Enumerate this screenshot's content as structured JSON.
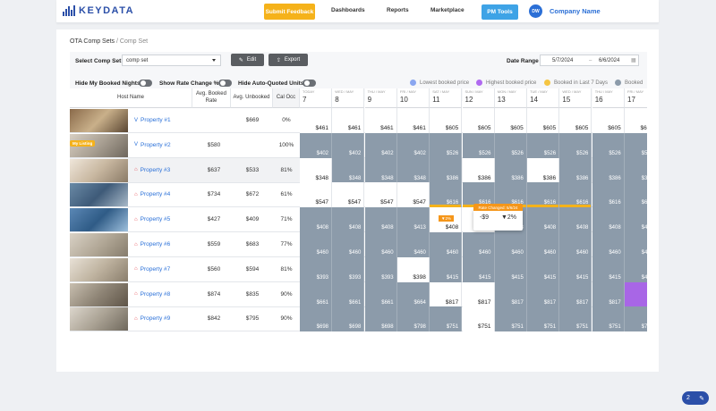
{
  "nav": {
    "brand": "KEYDATA",
    "submit_feedback": "Submit Feedback",
    "links": [
      "Dashboards",
      "Reports",
      "Marketplace"
    ],
    "active": "PM Tools",
    "avatar": "DW",
    "company": "Company Name"
  },
  "breadcrumb": {
    "root": "OTA Comp Sets",
    "sep": " / ",
    "current": "Comp Set"
  },
  "controls": {
    "select_label": "Select Comp Set:",
    "select_value": "comp set",
    "edit": "Edit",
    "export": "Export",
    "date_label": "Date Range",
    "date_start": "5/7/2024",
    "date_sep": "–",
    "date_end": "6/6/2024",
    "toggles": [
      "Hide My Booked Nights",
      "Show Rate Change %",
      "Hide Auto-Quoted Units"
    ]
  },
  "legend": [
    {
      "label": "Lowest booked price",
      "color": "#8aa6f0"
    },
    {
      "label": "Highest booked price",
      "color": "#b06af0"
    },
    {
      "label": "Booked in Last 7 Days",
      "color": "#f5c542"
    },
    {
      "label": "Booked",
      "color": "#8c9baa"
    }
  ],
  "table": {
    "headers": {
      "host": "Host Name",
      "avg_booked": "Avg. Booked Rate",
      "avg_unbooked": "Avg. Unbooked",
      "cal_occ": "Cal Occ"
    },
    "dates": [
      {
        "dow": "TODAY",
        "num": "7"
      },
      {
        "dow": "WED / MAY",
        "num": "8"
      },
      {
        "dow": "THU / MAY",
        "num": "9"
      },
      {
        "dow": "FRI / MAY",
        "num": "10"
      },
      {
        "dow": "SAT / MAY",
        "num": "11"
      },
      {
        "dow": "SUN / MAY",
        "num": "12"
      },
      {
        "dow": "MON / MAY",
        "num": "13"
      },
      {
        "dow": "TUE / MAY",
        "num": "14"
      },
      {
        "dow": "WED / MAY",
        "num": "15"
      },
      {
        "dow": "THU / MAY",
        "num": "16"
      },
      {
        "dow": "FRI / MAY",
        "num": "17"
      }
    ],
    "rows": [
      {
        "name": "Property #1",
        "src": "vrbo",
        "booked": "",
        "unbooked": "$669",
        "occ": "0%",
        "my": false,
        "cells": [
          [
            "open",
            "$461"
          ],
          [
            "open",
            "$461"
          ],
          [
            "open",
            "$461"
          ],
          [
            "open",
            "$461"
          ],
          [
            "open",
            "$605"
          ],
          [
            "open",
            "$605"
          ],
          [
            "open",
            "$605"
          ],
          [
            "open",
            "$605"
          ],
          [
            "open",
            "$605"
          ],
          [
            "open",
            "$605"
          ],
          [
            "open",
            "$605"
          ]
        ]
      },
      {
        "name": "Property #2",
        "src": "vrbo",
        "booked": "$580",
        "unbooked": "",
        "occ": "100%",
        "my": true,
        "my_label": "My Listing",
        "cells": [
          [
            "b",
            "$402"
          ],
          [
            "b",
            "$402"
          ],
          [
            "b",
            "$402"
          ],
          [
            "b",
            "$402"
          ],
          [
            "b",
            "$526"
          ],
          [
            "b",
            "$526"
          ],
          [
            "b",
            "$526"
          ],
          [
            "b",
            "$526"
          ],
          [
            "b",
            "$526"
          ],
          [
            "b",
            "$526"
          ],
          [
            "b",
            "$526"
          ]
        ]
      },
      {
        "name": "Property #3",
        "src": "air",
        "booked": "$637",
        "unbooked": "$533",
        "occ": "81%",
        "my": false,
        "cells": [
          [
            "open",
            "$348"
          ],
          [
            "b",
            "$348"
          ],
          [
            "b",
            "$348"
          ],
          [
            "b",
            "$348"
          ],
          [
            "b",
            "$386"
          ],
          [
            "open",
            "$386"
          ],
          [
            "b",
            "$386"
          ],
          [
            "open",
            "$386"
          ],
          [
            "b",
            "$386"
          ],
          [
            "b",
            "$386"
          ],
          [
            "b",
            "$386"
          ]
        ]
      },
      {
        "name": "Property #4",
        "src": "air",
        "booked": "$734",
        "unbooked": "$672",
        "occ": "61%",
        "my": false,
        "cells": [
          [
            "open",
            "$547"
          ],
          [
            "open",
            "$547"
          ],
          [
            "open",
            "$547"
          ],
          [
            "open",
            "$547"
          ],
          [
            "r",
            "$616"
          ],
          [
            "r",
            "$616"
          ],
          [
            "r",
            "$616"
          ],
          [
            "r",
            "$616"
          ],
          [
            "r",
            "$616"
          ],
          [
            "b",
            "$616"
          ],
          [
            "b",
            "$616"
          ]
        ]
      },
      {
        "name": "Property #5",
        "src": "air",
        "booked": "$427",
        "unbooked": "$409",
        "occ": "71%",
        "my": false,
        "cells": [
          [
            "b",
            "$408"
          ],
          [
            "b",
            "$408"
          ],
          [
            "b",
            "$408"
          ],
          [
            "b",
            "$413"
          ],
          [
            "open",
            "$408"
          ],
          [
            "open",
            "$408"
          ],
          [
            "b",
            "$408"
          ],
          [
            "b",
            "$408"
          ],
          [
            "b",
            "$408"
          ],
          [
            "b",
            "$408"
          ],
          [
            "b",
            "$408"
          ]
        ]
      },
      {
        "name": "Property #6",
        "src": "air",
        "booked": "$559",
        "unbooked": "$683",
        "occ": "77%",
        "my": false,
        "cells": [
          [
            "b",
            "$460"
          ],
          [
            "b",
            "$460"
          ],
          [
            "b",
            "$460"
          ],
          [
            "b",
            "$460"
          ],
          [
            "b",
            "$460"
          ],
          [
            "b",
            "$460"
          ],
          [
            "b",
            "$460"
          ],
          [
            "b",
            "$460"
          ],
          [
            "b",
            "$460"
          ],
          [
            "b",
            "$460"
          ],
          [
            "b",
            "$460"
          ]
        ]
      },
      {
        "name": "Property #7",
        "src": "air",
        "booked": "$560",
        "unbooked": "$594",
        "occ": "81%",
        "my": false,
        "cells": [
          [
            "b",
            "$393"
          ],
          [
            "b",
            "$393"
          ],
          [
            "b",
            "$393"
          ],
          [
            "open",
            "$398"
          ],
          [
            "b",
            "$415"
          ],
          [
            "b",
            "$415"
          ],
          [
            "b",
            "$415"
          ],
          [
            "b",
            "$415"
          ],
          [
            "b",
            "$415"
          ],
          [
            "b",
            "$415"
          ],
          [
            "b",
            "$415"
          ]
        ]
      },
      {
        "name": "Property #8",
        "src": "air",
        "booked": "$874",
        "unbooked": "$835",
        "occ": "90%",
        "my": false,
        "cells": [
          [
            "b",
            "$661"
          ],
          [
            "b",
            "$661"
          ],
          [
            "b",
            "$661"
          ],
          [
            "b",
            "$664"
          ],
          [
            "open",
            "$817"
          ],
          [
            "open",
            "$817"
          ],
          [
            "b",
            "$817"
          ],
          [
            "b",
            "$817"
          ],
          [
            "b",
            "$817"
          ],
          [
            "b",
            "$817"
          ],
          [
            "hi",
            ""
          ]
        ]
      },
      {
        "name": "Property #9",
        "src": "air",
        "booked": "$842",
        "unbooked": "$795",
        "occ": "90%",
        "my": false,
        "cells": [
          [
            "b",
            "$698"
          ],
          [
            "b",
            "$698"
          ],
          [
            "b",
            "$698"
          ],
          [
            "b",
            "$798"
          ],
          [
            "b",
            "$751"
          ],
          [
            "open",
            "$751"
          ],
          [
            "b",
            "$751"
          ],
          [
            "b",
            "$751"
          ],
          [
            "b",
            "$751"
          ],
          [
            "b",
            "$751"
          ],
          [
            "b",
            "$751"
          ]
        ]
      }
    ]
  },
  "popup": {
    "title": "Rate Changed: 5/6/24",
    "left": "-$9",
    "right": "▼2%"
  },
  "mini_tag": "▼2%",
  "help": {
    "count": "2"
  }
}
